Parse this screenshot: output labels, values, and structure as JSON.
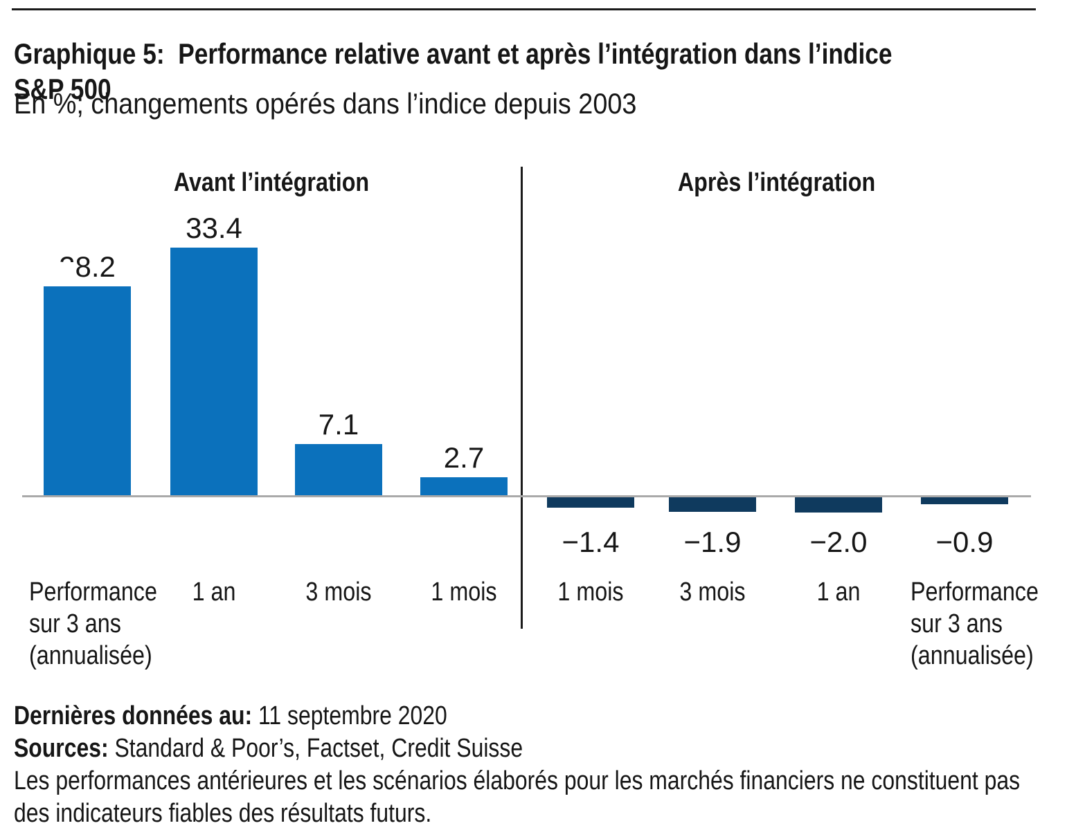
{
  "header": {
    "title_line1": "Graphique 5:  Performance relative avant et après l’intégration dans l’indice",
    "title_line2": "S&P 500",
    "subtitle": "En %; changements opérés dans l’indice depuis 2003"
  },
  "chart_data": {
    "type": "bar",
    "title": "Performance relative avant et après l’intégration dans l’indice S&P 500",
    "unit": "%",
    "baseline_value": 0,
    "axis_line_color": "#a9a9a9",
    "divider_color": "#1b1b1b",
    "groups": [
      {
        "label": "Avant l’intégration",
        "bar_color": "#0b71bc",
        "bars": [
          {
            "category": "Performance sur 3 ans (annualisée)",
            "value": 28.2,
            "value_label": "28.2",
            "label_partially_obscured": true
          },
          {
            "category": "1 an",
            "value": 33.4,
            "value_label": "33.4"
          },
          {
            "category": "3 mois",
            "value": 7.1,
            "value_label": "7.1"
          },
          {
            "category": "1 mois",
            "value": 2.7,
            "value_label": "2.7"
          }
        ]
      },
      {
        "label": "Après l’intégration",
        "bar_color": "#0f3a5e",
        "bars": [
          {
            "category": "1 mois",
            "value": -1.4,
            "value_label": "−1.4"
          },
          {
            "category": "3 mois",
            "value": -1.9,
            "value_label": "−1.9"
          },
          {
            "category": "1 an",
            "value": -2.0,
            "value_label": "−2.0"
          },
          {
            "category": "Performance sur 3 ans (annualisée)",
            "value": -0.9,
            "value_label": "−0.9"
          }
        ]
      }
    ]
  },
  "footer": {
    "last_data_label": "Dernières données au:",
    "last_data_value": "11 septembre 2020",
    "sources_label": "Sources:",
    "sources_value": "Standard & Poor’s, Factset, Credit Suisse",
    "disclaimer": "Les performances antérieures et les scénarios élaborés pour les marchés financiers ne constituent pas des indicateurs fiables des résultats futurs."
  }
}
